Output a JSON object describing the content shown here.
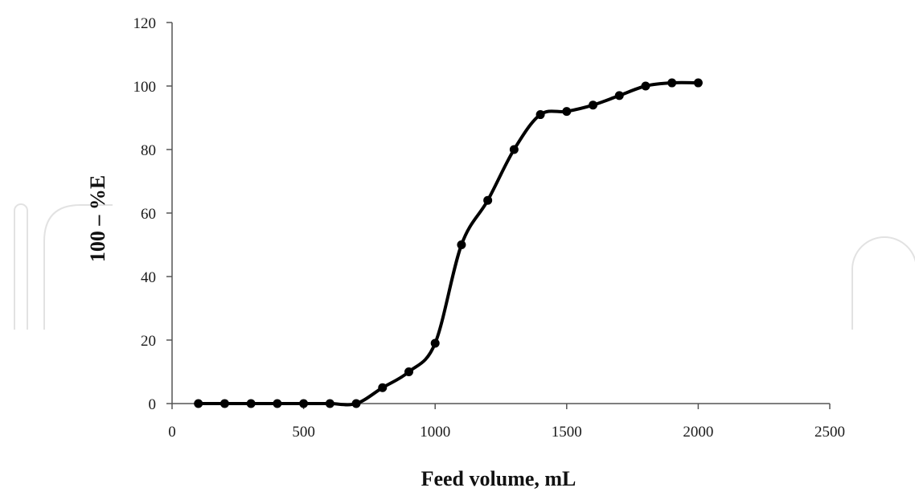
{
  "colors": {
    "series": "#000000",
    "axis": "#555555",
    "watermark": "#e2e2e2"
  },
  "chart_data": {
    "type": "line",
    "title": "",
    "xlabel": "Feed volume, mL",
    "ylabel": "100 – %E",
    "xlim": [
      0,
      2500
    ],
    "ylim": [
      0,
      120
    ],
    "x_ticks": [
      0,
      500,
      1000,
      1500,
      2000,
      2500
    ],
    "y_ticks": [
      0,
      20,
      40,
      60,
      80,
      100,
      120
    ],
    "x_tick_labels": [
      "0",
      "500",
      "1000",
      "1500",
      "2000",
      "2500"
    ],
    "y_tick_labels": [
      "0",
      "20",
      "40",
      "60",
      "80",
      "100",
      "120"
    ],
    "grid": false,
    "legend": "none",
    "marker": "circle",
    "smooth": true,
    "series": [
      {
        "x": [
          100,
          200,
          300,
          400,
          500,
          600,
          700,
          800,
          900,
          1000,
          1100,
          1200,
          1300,
          1400,
          1500,
          1600,
          1700,
          1800,
          1900,
          2000
        ],
        "y": [
          0,
          0,
          0,
          0,
          0,
          0,
          0,
          5,
          10,
          19,
          50,
          64,
          80,
          91,
          92,
          94,
          97,
          100,
          101,
          101
        ]
      }
    ]
  }
}
